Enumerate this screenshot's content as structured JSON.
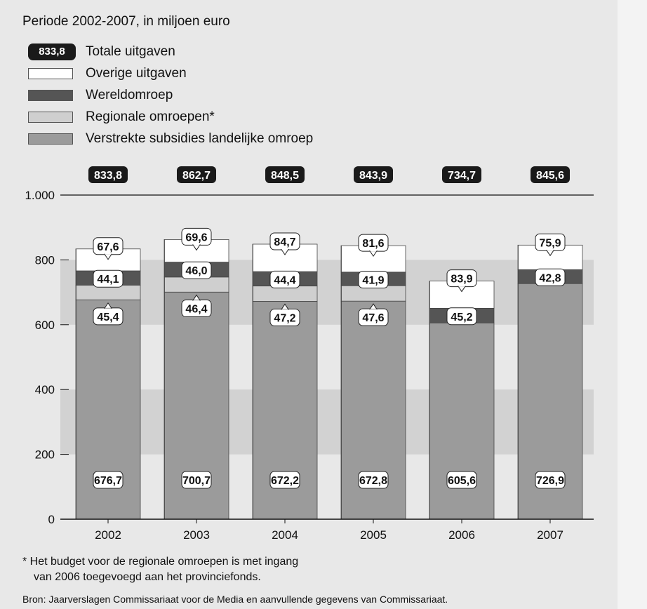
{
  "subtitle": "Periode 2002-2007, in miljoen euro",
  "legend": {
    "total_badge": "833,8",
    "total_label": "Totale uitgaven",
    "overige": "Overige uitgaven",
    "wereldomroep": "Wereldomroep",
    "regionale": "Regionale omroepen*",
    "landelijke": "Verstrekte subsidies landelijke omroep"
  },
  "colors": {
    "landelijke": "#9b9b9b",
    "regionale": "#cfcfcf",
    "wereldomroep": "#555555",
    "overige": "#ffffff",
    "badge": "#1a1a1a",
    "band": "#d2d2d2"
  },
  "chart_data": {
    "type": "bar",
    "stacked": true,
    "categories": [
      "2002",
      "2003",
      "2004",
      "2005",
      "2006",
      "2007"
    ],
    "series": [
      {
        "name": "Verstrekte subsidies landelijke omroep",
        "key": "landelijke",
        "values": [
          676.7,
          700.7,
          672.2,
          672.8,
          605.6,
          726.9
        ],
        "labels": [
          "676,7",
          "700,7",
          "672,2",
          "672,8",
          "605,6",
          "726,9"
        ]
      },
      {
        "name": "Regionale omroepen*",
        "key": "regionale",
        "values": [
          45.4,
          46.4,
          47.2,
          47.6,
          0,
          0
        ],
        "labels": [
          "45,4",
          "46,4",
          "47,2",
          "47,6",
          "",
          ""
        ]
      },
      {
        "name": "Wereldomroep",
        "key": "wereldomroep",
        "values": [
          44.1,
          46.0,
          44.4,
          41.9,
          45.2,
          42.8
        ],
        "labels": [
          "44,1",
          "46,0",
          "44,4",
          "41,9",
          "45,2",
          "42,8"
        ]
      },
      {
        "name": "Overige uitgaven",
        "key": "overige",
        "values": [
          67.6,
          69.6,
          84.7,
          81.6,
          83.9,
          75.9
        ],
        "labels": [
          "67,6",
          "69,6",
          "84,7",
          "81,6",
          "83,9",
          "75,9"
        ]
      }
    ],
    "totals": [
      833.8,
      862.7,
      848.5,
      843.9,
      734.7,
      845.6
    ],
    "total_labels": [
      "833,8",
      "862,7",
      "848,5",
      "843,9",
      "734,7",
      "845,6"
    ],
    "ylim": [
      0,
      1000
    ],
    "yticks": [
      0,
      200,
      400,
      600,
      800,
      1000
    ],
    "ytick_labels": [
      "0",
      "200",
      "400",
      "600",
      "800",
      "1.000"
    ],
    "grid": false,
    "legend_position": "top-left"
  },
  "footnote": {
    "line1": "*  Het budget voor de regionale omroepen is met ingang",
    "line2": "van 2006 toegevoegd aan het provinciefonds."
  },
  "source": "Bron: Jaarverslagen Commissariaat voor de Media en aanvullende gegevens van Commissariaat."
}
